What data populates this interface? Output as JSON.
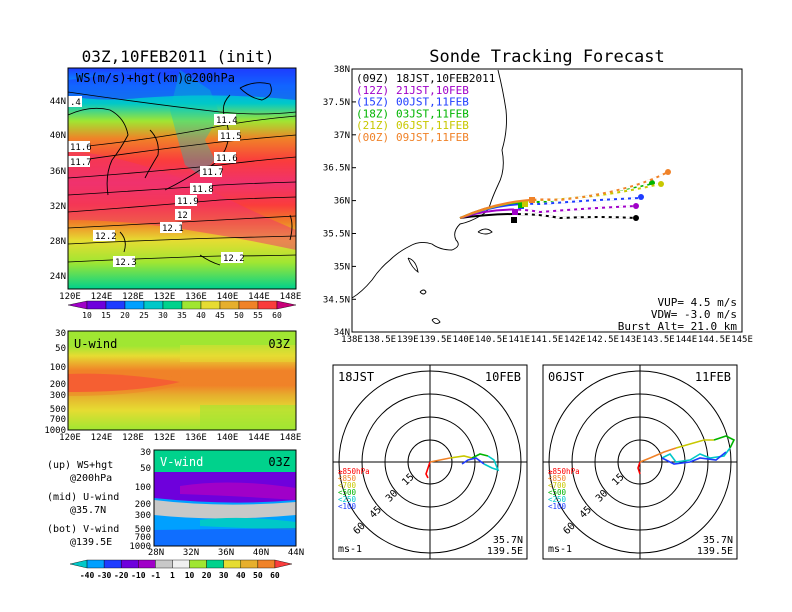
{
  "left_title": "03Z,10FEB2011 (init)",
  "right_title": "Sonde Tracking Forecast",
  "map_panel": {
    "label": "WS(m/s)+hgt(km)@200hPa",
    "lat_ticks": [
      "44N",
      "40N",
      "36N",
      "32N",
      "28N",
      "24N"
    ],
    "lon_ticks": [
      "120E",
      "124E",
      "128E",
      "132E",
      "136E",
      "140E",
      "144E",
      "148E"
    ],
    "contour_labels": [
      "11.4",
      "11.5",
      "11.6",
      "11.6",
      "11.7",
      "11.7",
      "11.8",
      "11.9",
      "12",
      "12.1",
      "12.2",
      "12.2",
      "12.3",
      ".4"
    ],
    "colorbar_values": [
      "10",
      "15",
      "20",
      "25",
      "30",
      "35",
      "40",
      "45",
      "50",
      "55",
      "60"
    ],
    "colorbar_colors": [
      "#a000c8",
      "#6e00dc",
      "#1e3cff",
      "#00a0ff",
      "#00c8c8",
      "#00d28c",
      "#a0e632",
      "#e6dc32",
      "#e6af2d",
      "#f08228",
      "#fa3c3c",
      "#c80078"
    ]
  },
  "uwind_panel": {
    "label": "U-wind",
    "time": "03Z",
    "p_ticks": [
      "30",
      "50",
      "100",
      "200",
      "300",
      "500",
      "700",
      "1000"
    ],
    "lon_ticks": [
      "120E",
      "124E",
      "128E",
      "132E",
      "136E",
      "140E",
      "144E",
      "148E"
    ]
  },
  "vwind_panel": {
    "label": "V-wind",
    "time": "03Z",
    "p_ticks": [
      "30",
      "50",
      "100",
      "200",
      "300",
      "500",
      "700",
      "1000"
    ],
    "lat_ticks": [
      "28N",
      "32N",
      "36N",
      "40N",
      "44N"
    ]
  },
  "legend_notes": [
    {
      "line1": "(up) WS+hgt",
      "line2": "@200hPa"
    },
    {
      "line1": "(mid) U-wind",
      "line2": "@35.7N"
    },
    {
      "line1": "(bot) V-wind",
      "line2": "@139.5E"
    }
  ],
  "bottom_colorbar": {
    "values": [
      "-40",
      "-30",
      "-20",
      "-10",
      "-1",
      "1",
      "10",
      "20",
      "30",
      "40",
      "50",
      "60"
    ],
    "colors": [
      "#00c8c8",
      "#00a0ff",
      "#1e3cff",
      "#6e00dc",
      "#a000c8",
      "#c8c8c8",
      "#f0f0f0",
      "#a0e632",
      "#00d28c",
      "#e6dc32",
      "#e6af2d",
      "#f08228",
      "#fa3c3c"
    ]
  },
  "tracking": {
    "lat_ticks": [
      "38N",
      "37.5N",
      "37N",
      "36.5N",
      "36N",
      "35.5N",
      "35N",
      "34.5N",
      "34N"
    ],
    "lon_ticks": [
      "138E",
      "138.5E",
      "139E",
      "139.5E",
      "140E",
      "140.5E",
      "141E",
      "141.5E",
      "142E",
      "142.5E",
      "143E",
      "143.5E",
      "144E",
      "144.5E",
      "145E"
    ],
    "legend": [
      {
        "code": "(09Z)",
        "text": "18JST,10FEB2011",
        "color": "#000000"
      },
      {
        "code": "(12Z)",
        "text": "21JST,10FEB",
        "color": "#a000c8"
      },
      {
        "code": "(15Z)",
        "text": "00JST,11FEB",
        "color": "#1e3cff"
      },
      {
        "code": "(18Z)",
        "text": "03JST,11FEB",
        "color": "#00b400"
      },
      {
        "code": "(21Z)",
        "text": "06JST,11FEB",
        "color": "#c8c800"
      },
      {
        "code": "(00Z)",
        "text": "09JST,11FEB",
        "color": "#f08228"
      }
    ],
    "params": [
      "VUP=  4.5 m/s",
      "VDW= -3.0 m/s",
      "Burst Alt= 21.0 km"
    ]
  },
  "hodograph_1": {
    "time": "18JST",
    "date": "10FEB",
    "ring_labels": [
      "15",
      "30",
      "45",
      "60"
    ],
    "unit": "ms-1",
    "lat": "35.7N",
    "lon": "139.5E"
  },
  "hodograph_2": {
    "time": "06JST",
    "date": "11FEB",
    "ring_labels": [
      "15",
      "30",
      "45",
      "60"
    ],
    "unit": "ms-1",
    "lat": "35.7N",
    "lon": "139.5E"
  },
  "hodo_levels": [
    {
      "text": "≥850hPa",
      "color": "#ff0000"
    },
    {
      "text": "<850",
      "color": "#f08228"
    },
    {
      "text": "<700",
      "color": "#c8c800"
    },
    {
      "text": "<500",
      "color": "#00b400"
    },
    {
      "text": "<250",
      "color": "#00c8c8"
    },
    {
      "text": "<100",
      "color": "#1e3cff"
    }
  ]
}
